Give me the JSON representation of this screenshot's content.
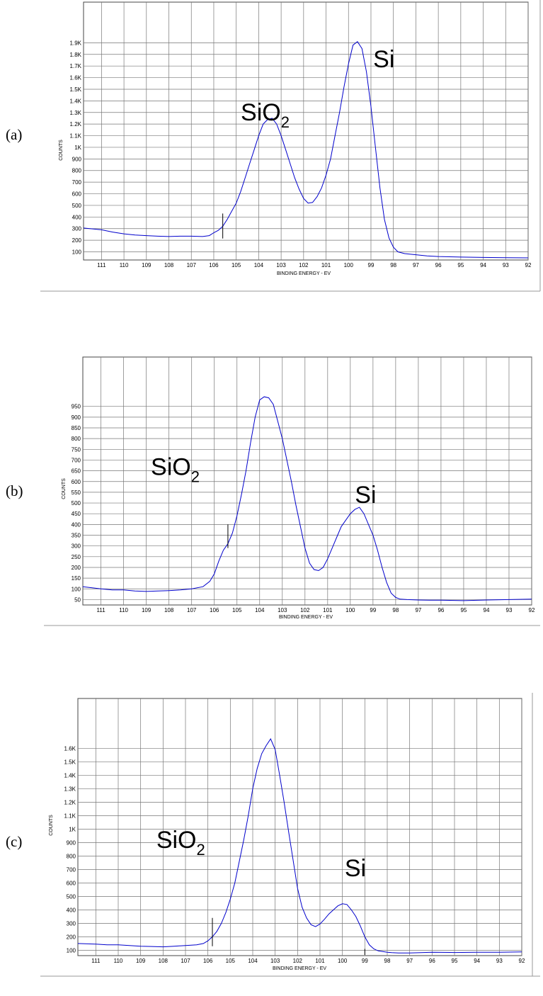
{
  "chart_data": [
    {
      "type": "line",
      "panel_label": "(a)",
      "xlabel": "BINDING ENERGY - EV",
      "ylabel": "COUNTS",
      "x_ticks": [
        "111",
        "110",
        "109",
        "108",
        "107",
        "106",
        "105",
        "104",
        "103",
        "102",
        "101",
        "100",
        "99",
        "98",
        "97",
        "96",
        "95",
        "94",
        "93",
        "92"
      ],
      "y_ticks": [
        "100",
        "200",
        "300",
        "400",
        "500",
        "600",
        "700",
        "800",
        "900",
        "1K",
        "1.1K",
        "1.2K",
        "1.3K",
        "1.4K",
        "1.5K",
        "1.6K",
        "1.7K",
        "1.8K",
        "1.9K"
      ],
      "xlim": [
        111.8,
        92
      ],
      "ylim": [
        30,
        2250
      ],
      "grid": true,
      "annotations": [
        {
          "text": "SiO",
          "sub": "2",
          "x": 104.8,
          "y": 1230
        },
        {
          "text": "Si",
          "x": 98.9,
          "y": 1690
        }
      ],
      "markers": [
        {
          "x": 105.6,
          "y0": 215,
          "y1": 430
        }
      ],
      "series": [
        {
          "x": [
            111.8,
            111,
            110.5,
            110,
            109.5,
            109,
            108.5,
            108,
            107.5,
            107,
            106.5,
            106.2,
            106,
            105.8,
            105.6,
            105.4,
            105.2,
            105,
            104.8,
            104.6,
            104.4,
            104.2,
            104,
            103.8,
            103.6,
            103.4,
            103.2,
            103,
            102.8,
            102.6,
            102.4,
            102.2,
            102,
            101.8,
            101.6,
            101.4,
            101.2,
            101,
            100.8,
            100.6,
            100.4,
            100.2,
            100,
            99.8,
            99.6,
            99.4,
            99.2,
            99,
            98.8,
            98.6,
            98.4,
            98.2,
            98,
            97.8,
            97.5,
            97,
            96.5,
            96,
            95,
            94,
            93,
            92
          ],
          "y": [
            305,
            290,
            270,
            255,
            245,
            240,
            235,
            232,
            235,
            235,
            232,
            240,
            265,
            285,
            320,
            380,
            450,
            520,
            620,
            740,
            860,
            980,
            1100,
            1200,
            1240,
            1250,
            1200,
            1100,
            980,
            860,
            740,
            640,
            560,
            520,
            525,
            575,
            650,
            760,
            900,
            1100,
            1300,
            1520,
            1720,
            1880,
            1910,
            1850,
            1650,
            1350,
            1000,
            650,
            380,
            220,
            140,
            100,
            85,
            75,
            65,
            60,
            55,
            52,
            50,
            48
          ]
        }
      ]
    },
    {
      "type": "line",
      "panel_label": "(b)",
      "xlabel": "BINDING ENERGY - EV",
      "ylabel": "COUNTS",
      "x_ticks": [
        "111",
        "110",
        "109",
        "108",
        "107",
        "106",
        "105",
        "104",
        "103",
        "102",
        "101",
        "100",
        "99",
        "98",
        "97",
        "96",
        "95",
        "94",
        "93",
        "92"
      ],
      "y_ticks": [
        "50",
        "100",
        "150",
        "200",
        "250",
        "300",
        "350",
        "400",
        "450",
        "500",
        "550",
        "600",
        "650",
        "700",
        "750",
        "800",
        "850",
        "900",
        "950"
      ],
      "xlim": [
        111.8,
        92
      ],
      "ylim": [
        25,
        1180
      ],
      "grid": true,
      "annotations": [
        {
          "text": "SiO",
          "sub": "2",
          "x": 108.8,
          "y": 630
        },
        {
          "text": "Si",
          "x": 99.8,
          "y": 500
        }
      ],
      "markers": [
        {
          "x": 105.4,
          "y0": 290,
          "y1": 400
        }
      ],
      "series": [
        {
          "x": [
            111.8,
            111,
            110.5,
            110,
            109.5,
            109,
            108.5,
            108,
            107.5,
            107,
            106.5,
            106.2,
            106,
            105.8,
            105.6,
            105.4,
            105.2,
            105,
            104.8,
            104.6,
            104.4,
            104.2,
            104,
            103.8,
            103.6,
            103.4,
            103.2,
            103,
            102.8,
            102.6,
            102.4,
            102.2,
            102,
            101.8,
            101.6,
            101.4,
            101.2,
            101,
            100.8,
            100.6,
            100.4,
            100.2,
            100,
            99.8,
            99.6,
            99.4,
            99.2,
            99,
            98.8,
            98.6,
            98.4,
            98.2,
            98,
            97.8,
            97.5,
            97,
            96.5,
            96,
            95,
            94,
            93,
            92
          ],
          "y": [
            110,
            100,
            95,
            95,
            90,
            88,
            90,
            92,
            95,
            100,
            110,
            135,
            170,
            230,
            280,
            310,
            360,
            440,
            540,
            650,
            780,
            900,
            980,
            995,
            990,
            960,
            880,
            800,
            700,
            600,
            490,
            390,
            290,
            220,
            190,
            185,
            200,
            240,
            290,
            340,
            390,
            420,
            450,
            470,
            480,
            450,
            400,
            350,
            280,
            200,
            130,
            80,
            60,
            52,
            50,
            48,
            47,
            47,
            45,
            48,
            50,
            52
          ]
        }
      ]
    },
    {
      "type": "line",
      "panel_label": "(c)",
      "xlabel": "BINDING ENERGY - EV",
      "ylabel": "COUNTS",
      "x_ticks": [
        "111",
        "110",
        "109",
        "108",
        "107",
        "106",
        "105",
        "104",
        "103",
        "102",
        "101",
        "100",
        "99",
        "98",
        "97",
        "96",
        "95",
        "94",
        "93",
        "92"
      ],
      "y_ticks": [
        "100",
        "200",
        "300",
        "400",
        "500",
        "600",
        "700",
        "800",
        "900",
        "1K",
        "1.1K",
        "1.2K",
        "1.3K",
        "1.4K",
        "1.5K",
        "1.6K"
      ],
      "xlim": [
        111.8,
        92
      ],
      "ylim": [
        60,
        1970
      ],
      "grid": true,
      "annotations": [
        {
          "text": "SiO",
          "sub": "2",
          "x": 108.3,
          "y": 860
        },
        {
          "text": "Si",
          "x": 99.9,
          "y": 650
        }
      ],
      "markers": [
        {
          "x": 105.8,
          "y0": 130,
          "y1": 340
        },
        {
          "x": 99.0,
          "y0": 65,
          "y1": 110
        }
      ],
      "series": [
        {
          "x": [
            111.8,
            111,
            110.5,
            110,
            109.5,
            109,
            108.5,
            108,
            107.5,
            107,
            106.5,
            106.2,
            106,
            105.8,
            105.6,
            105.4,
            105.2,
            105,
            104.8,
            104.6,
            104.4,
            104.2,
            104,
            103.8,
            103.6,
            103.4,
            103.2,
            103,
            102.8,
            102.6,
            102.4,
            102.2,
            102,
            101.8,
            101.6,
            101.4,
            101.2,
            101,
            100.8,
            100.6,
            100.4,
            100.2,
            100,
            99.8,
            99.6,
            99.4,
            99.2,
            99,
            98.8,
            98.6,
            98.4,
            98.2,
            98,
            97.8,
            97.5,
            97,
            96.5,
            96,
            95,
            94,
            93,
            92
          ],
          "y": [
            150,
            145,
            140,
            140,
            135,
            130,
            128,
            125,
            130,
            135,
            140,
            150,
            170,
            200,
            240,
            300,
            380,
            480,
            600,
            760,
            920,
            1100,
            1300,
            1450,
            1560,
            1620,
            1670,
            1590,
            1400,
            1200,
            980,
            770,
            560,
            420,
            340,
            290,
            275,
            295,
            330,
            370,
            400,
            430,
            445,
            440,
            400,
            350,
            280,
            200,
            140,
            110,
            95,
            90,
            85,
            82,
            80,
            80,
            82,
            85,
            83,
            85,
            85,
            88
          ]
        }
      ]
    }
  ]
}
